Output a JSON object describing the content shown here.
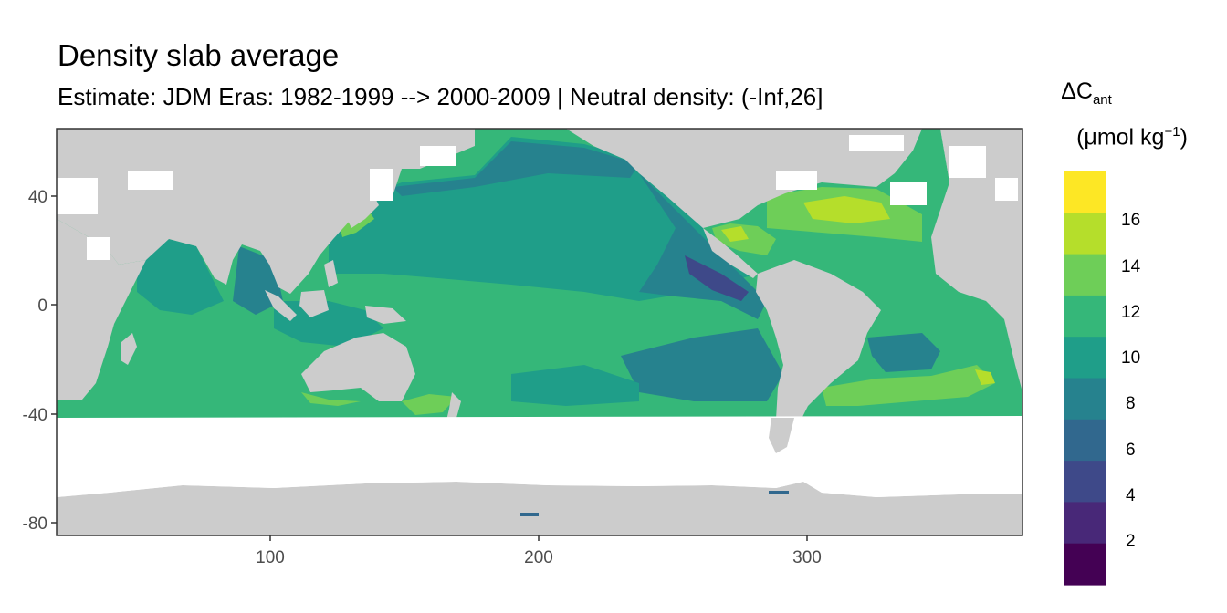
{
  "map": {
    "title": "Density slab average",
    "subtitle": "Estimate: JDM Eras: 1982-1999 --> 2000-2009 | Neutral density: (-Inf,26]",
    "x_ticks": [
      100,
      200,
      300
    ],
    "y_ticks": [
      40,
      0,
      -40,
      -80
    ],
    "y_tick_labels": [
      "40",
      "0",
      "-40",
      "-80"
    ],
    "x_range": [
      20,
      380
    ],
    "y_range": [
      -85,
      65
    ],
    "land_color": "#cccccc",
    "no_data_color": "#ffffff",
    "grid_on": true
  },
  "legend": {
    "title_symbol": "ΔC",
    "title_sub": "ant",
    "unit_open": "(μmol kg",
    "unit_sup": "−1",
    "unit_close": ")",
    "ticks": [
      "16",
      "14",
      "12",
      "10",
      "8",
      "6",
      "4",
      "2"
    ],
    "colors": [
      "#fde725",
      "#b5de2b",
      "#6ece58",
      "#35b779",
      "#1f9e89",
      "#26828e",
      "#31688e",
      "#3e4989",
      "#482878",
      "#440154"
    ]
  }
}
